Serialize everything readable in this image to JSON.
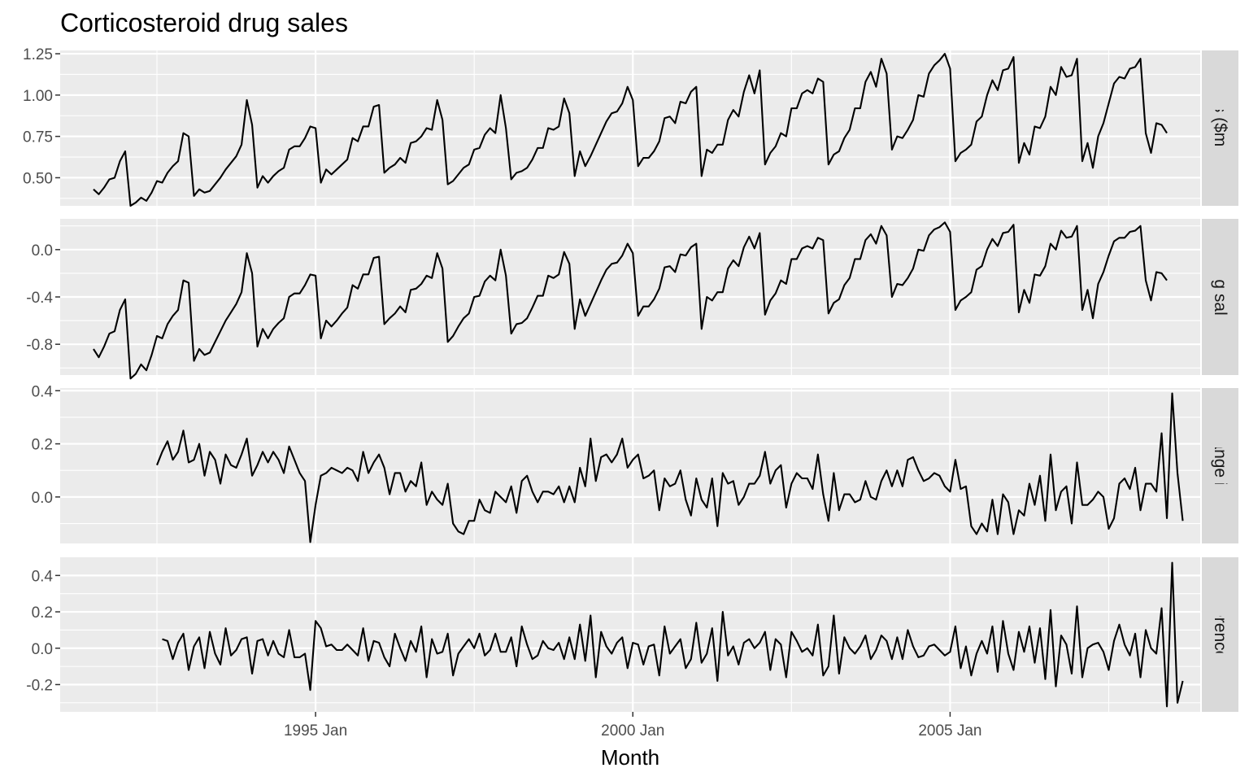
{
  "chart_data": {
    "type": "line",
    "title": "Corticosteroid drug sales",
    "xlabel": "Month",
    "x_axis": {
      "type": "date",
      "range": [
        "1991-07",
        "2008-06"
      ],
      "ticks": [
        "1995-01",
        "2000-01",
        "2005-01"
      ],
      "tick_labels": [
        "1995 Jan",
        "2000 Jan",
        "2005 Jan"
      ]
    },
    "grid": true,
    "legend": "none",
    "facets": [
      {
        "strip": "Sales ($million)",
        "ylim": [
          0.33,
          1.27
        ],
        "y_ticks": [
          0.5,
          0.75,
          1.0,
          1.25
        ],
        "y_tick_labels": [
          "0.50",
          "0.75",
          "1.00",
          "1.25"
        ],
        "start": "1991-07",
        "values": [
          0.43,
          0.4,
          0.44,
          0.49,
          0.5,
          0.6,
          0.66,
          0.33,
          0.35,
          0.38,
          0.36,
          0.41,
          0.48,
          0.47,
          0.53,
          0.57,
          0.6,
          0.77,
          0.75,
          0.39,
          0.43,
          0.41,
          0.42,
          0.46,
          0.5,
          0.55,
          0.59,
          0.63,
          0.7,
          0.97,
          0.82,
          0.44,
          0.51,
          0.47,
          0.51,
          0.54,
          0.56,
          0.67,
          0.69,
          0.69,
          0.74,
          0.81,
          0.8,
          0.47,
          0.55,
          0.52,
          0.55,
          0.58,
          0.61,
          0.74,
          0.72,
          0.81,
          0.81,
          0.93,
          0.94,
          0.53,
          0.56,
          0.58,
          0.62,
          0.59,
          0.71,
          0.72,
          0.75,
          0.8,
          0.79,
          0.97,
          0.85,
          0.46,
          0.48,
          0.52,
          0.56,
          0.58,
          0.67,
          0.68,
          0.76,
          0.8,
          0.77,
          1.0,
          0.8,
          0.49,
          0.53,
          0.54,
          0.56,
          0.61,
          0.68,
          0.68,
          0.8,
          0.79,
          0.81,
          0.98,
          0.89,
          0.51,
          0.66,
          0.57,
          0.63,
          0.7,
          0.77,
          0.84,
          0.89,
          0.9,
          0.95,
          1.05,
          0.97,
          0.57,
          0.62,
          0.62,
          0.66,
          0.72,
          0.86,
          0.87,
          0.83,
          0.96,
          0.95,
          1.02,
          1.05,
          0.51,
          0.67,
          0.65,
          0.7,
          0.7,
          0.85,
          0.91,
          0.87,
          1.02,
          1.12,
          1.01,
          1.15,
          0.58,
          0.65,
          0.69,
          0.77,
          0.75,
          0.92,
          0.92,
          1.01,
          1.03,
          1.01,
          1.1,
          1.08,
          0.58,
          0.64,
          0.66,
          0.74,
          0.79,
          0.92,
          0.92,
          1.08,
          1.14,
          1.05,
          1.22,
          1.13,
          0.67,
          0.75,
          0.74,
          0.79,
          0.85,
          1.0,
          0.99,
          1.13,
          1.18,
          1.21,
          1.25,
          1.16,
          0.6,
          0.65,
          0.67,
          0.7,
          0.84,
          0.87,
          1.0,
          1.09,
          1.03,
          1.15,
          1.16,
          1.23,
          0.59,
          0.71,
          0.64,
          0.81,
          0.8,
          0.87,
          1.05,
          1.0,
          1.17,
          1.11,
          1.12,
          1.22,
          0.6,
          0.71,
          0.56,
          0.75,
          0.83,
          0.95,
          1.07,
          1.11,
          1.1,
          1.16,
          1.17,
          1.22,
          0.77,
          0.65,
          0.83,
          0.82,
          0.77
        ]
      },
      {
        "strip": "Log sales",
        "ylim": [
          -1.06,
          0.26
        ],
        "y_ticks": [
          -0.8,
          -0.4,
          0.0
        ],
        "y_tick_labels": [
          "-0.8",
          "-0.4",
          "0.0"
        ],
        "start": "1991-07",
        "values": [
          -0.84,
          -0.91,
          -0.82,
          -0.71,
          -0.69,
          -0.51,
          -0.42,
          -1.09,
          -1.05,
          -0.97,
          -1.02,
          -0.89,
          -0.73,
          -0.75,
          -0.63,
          -0.56,
          -0.51,
          -0.26,
          -0.28,
          -0.94,
          -0.84,
          -0.89,
          -0.87,
          -0.78,
          -0.69,
          -0.6,
          -0.53,
          -0.46,
          -0.36,
          -0.03,
          -0.2,
          -0.82,
          -0.67,
          -0.75,
          -0.67,
          -0.62,
          -0.58,
          -0.4,
          -0.37,
          -0.37,
          -0.3,
          -0.21,
          -0.22,
          -0.75,
          -0.6,
          -0.65,
          -0.6,
          -0.54,
          -0.49,
          -0.3,
          -0.33,
          -0.21,
          -0.21,
          -0.07,
          -0.06,
          -0.63,
          -0.58,
          -0.54,
          -0.48,
          -0.53,
          -0.34,
          -0.33,
          -0.29,
          -0.22,
          -0.24,
          -0.03,
          -0.16,
          -0.78,
          -0.73,
          -0.65,
          -0.58,
          -0.54,
          -0.4,
          -0.39,
          -0.27,
          -0.22,
          -0.26,
          0.0,
          -0.22,
          -0.71,
          -0.63,
          -0.62,
          -0.58,
          -0.49,
          -0.39,
          -0.39,
          -0.22,
          -0.24,
          -0.21,
          -0.02,
          -0.12,
          -0.67,
          -0.42,
          -0.56,
          -0.46,
          -0.36,
          -0.26,
          -0.17,
          -0.12,
          -0.11,
          -0.05,
          0.05,
          -0.03,
          -0.56,
          -0.48,
          -0.48,
          -0.42,
          -0.33,
          -0.15,
          -0.14,
          -0.19,
          -0.04,
          -0.05,
          0.02,
          0.05,
          -0.67,
          -0.4,
          -0.43,
          -0.36,
          -0.36,
          -0.16,
          -0.09,
          -0.14,
          0.02,
          0.11,
          0.01,
          0.14,
          -0.55,
          -0.43,
          -0.37,
          -0.26,
          -0.29,
          -0.08,
          -0.08,
          0.01,
          0.03,
          0.01,
          0.1,
          0.08,
          -0.54,
          -0.45,
          -0.42,
          -0.3,
          -0.24,
          -0.08,
          -0.08,
          0.08,
          0.13,
          0.05,
          0.2,
          0.12,
          -0.4,
          -0.29,
          -0.3,
          -0.24,
          -0.16,
          0.0,
          -0.01,
          0.12,
          0.17,
          0.19,
          0.23,
          0.15,
          -0.51,
          -0.43,
          -0.4,
          -0.36,
          -0.17,
          -0.14,
          0.0,
          0.09,
          0.03,
          0.14,
          0.15,
          0.21,
          -0.53,
          -0.34,
          -0.45,
          -0.21,
          -0.22,
          -0.14,
          0.05,
          0.0,
          0.16,
          0.1,
          0.11,
          0.2,
          -0.51,
          -0.34,
          -0.58,
          -0.29,
          -0.19,
          -0.05,
          0.07,
          0.1,
          0.1,
          0.15,
          0.16,
          0.2,
          -0.26,
          -0.43,
          -0.19,
          -0.2,
          -0.26
        ]
      },
      {
        "strip": "Annual change in log sales",
        "ylim": [
          -0.175,
          0.41
        ],
        "y_ticks": [
          0.0,
          0.2,
          0.4
        ],
        "y_tick_labels": [
          "0.0",
          "0.2",
          "0.4"
        ],
        "start": "1992-07",
        "values": [
          0.12,
          0.17,
          0.21,
          0.14,
          0.17,
          0.25,
          0.13,
          0.14,
          0.2,
          0.08,
          0.17,
          0.14,
          0.05,
          0.16,
          0.12,
          0.11,
          0.16,
          0.22,
          0.08,
          0.12,
          0.17,
          0.13,
          0.17,
          0.14,
          0.09,
          0.19,
          0.14,
          0.09,
          0.06,
          -0.17,
          -0.03,
          0.08,
          0.09,
          0.11,
          0.1,
          0.09,
          0.11,
          0.1,
          0.06,
          0.17,
          0.09,
          0.13,
          0.16,
          0.11,
          0.01,
          0.09,
          0.09,
          0.02,
          0.06,
          0.04,
          0.13,
          -0.03,
          0.02,
          -0.01,
          -0.03,
          0.05,
          -0.1,
          -0.13,
          -0.14,
          -0.09,
          -0.09,
          -0.01,
          -0.05,
          -0.06,
          0.02,
          0.0,
          -0.02,
          0.04,
          -0.06,
          0.06,
          0.08,
          0.02,
          -0.02,
          0.02,
          0.02,
          0.01,
          0.04,
          -0.02,
          0.04,
          -0.02,
          0.11,
          0.04,
          0.22,
          0.06,
          0.15,
          0.16,
          0.13,
          0.16,
          0.22,
          0.11,
          0.14,
          0.16,
          0.07,
          0.08,
          0.1,
          -0.05,
          0.07,
          0.04,
          0.05,
          0.1,
          -0.01,
          -0.07,
          0.07,
          -0.01,
          -0.04,
          0.07,
          -0.11,
          0.09,
          0.05,
          0.06,
          -0.03,
          0.0,
          0.05,
          0.05,
          0.08,
          0.17,
          0.05,
          0.1,
          0.12,
          -0.04,
          0.05,
          0.09,
          0.07,
          0.07,
          0.03,
          0.16,
          0.01,
          -0.09,
          0.09,
          -0.05,
          0.01,
          0.01,
          -0.02,
          -0.01,
          0.06,
          0.0,
          -0.01,
          0.06,
          0.1,
          0.04,
          0.1,
          0.04,
          0.14,
          0.15,
          0.1,
          0.06,
          0.07,
          0.09,
          0.08,
          0.04,
          0.02,
          0.14,
          0.03,
          0.04,
          -0.11,
          -0.14,
          -0.1,
          -0.13,
          -0.01,
          -0.14,
          0.01,
          -0.02,
          -0.14,
          -0.05,
          -0.07,
          0.05,
          -0.03,
          0.08,
          -0.09,
          0.16,
          -0.05,
          0.02,
          0.04,
          -0.1,
          0.13,
          -0.03,
          -0.03,
          -0.01,
          0.02,
          0.0,
          -0.12,
          -0.08,
          0.05,
          0.07,
          0.03,
          0.11,
          -0.05,
          0.05,
          0.05,
          0.02,
          0.24,
          -0.08,
          0.39,
          0.09,
          -0.09
        ]
      },
      {
        "strip": "Doubly differenced log sales",
        "ylim": [
          -0.35,
          0.5
        ],
        "y_ticks": [
          -0.2,
          0.0,
          0.2,
          0.4
        ],
        "y_tick_labels": [
          "-0.2",
          "0.0",
          "0.2",
          "0.4"
        ],
        "start": "1992-08",
        "values": [
          0.05,
          0.04,
          -0.06,
          0.03,
          0.08,
          -0.12,
          0.01,
          0.06,
          -0.11,
          0.09,
          -0.03,
          -0.09,
          0.11,
          -0.04,
          -0.01,
          0.05,
          0.06,
          -0.14,
          0.04,
          0.05,
          -0.04,
          0.04,
          -0.03,
          -0.05,
          0.1,
          -0.05,
          -0.05,
          -0.03,
          -0.23,
          0.15,
          0.11,
          0.01,
          0.02,
          -0.01,
          -0.01,
          0.02,
          -0.01,
          -0.04,
          0.11,
          -0.07,
          0.04,
          0.03,
          -0.05,
          -0.1,
          0.08,
          0.0,
          -0.07,
          0.04,
          -0.02,
          0.12,
          -0.16,
          0.05,
          -0.03,
          -0.02,
          0.08,
          -0.15,
          -0.03,
          0.01,
          0.05,
          0.0,
          0.08,
          -0.04,
          -0.01,
          0.08,
          -0.02,
          -0.02,
          0.06,
          -0.1,
          0.12,
          0.02,
          -0.06,
          -0.04,
          0.04,
          0.0,
          -0.01,
          0.03,
          -0.06,
          0.06,
          -0.06,
          0.13,
          -0.07,
          0.18,
          -0.16,
          0.09,
          0.01,
          -0.03,
          0.03,
          0.06,
          -0.11,
          0.03,
          0.02,
          -0.09,
          0.01,
          0.02,
          -0.15,
          0.12,
          -0.03,
          0.01,
          0.05,
          -0.11,
          -0.06,
          0.14,
          -0.08,
          -0.03,
          0.11,
          -0.18,
          0.2,
          -0.04,
          0.01,
          -0.09,
          0.03,
          0.05,
          0.0,
          0.03,
          0.09,
          -0.12,
          0.05,
          0.02,
          -0.16,
          0.09,
          0.04,
          -0.02,
          0.0,
          -0.04,
          0.13,
          -0.15,
          -0.1,
          0.18,
          -0.14,
          0.06,
          0.0,
          -0.03,
          0.01,
          0.07,
          -0.06,
          -0.01,
          0.07,
          0.04,
          -0.06,
          0.06,
          -0.06,
          0.1,
          0.01,
          -0.05,
          -0.04,
          0.01,
          0.02,
          -0.01,
          -0.04,
          -0.02,
          0.12,
          -0.11,
          0.01,
          -0.15,
          -0.03,
          0.04,
          -0.03,
          0.12,
          -0.13,
          0.15,
          -0.03,
          -0.12,
          0.09,
          -0.02,
          0.12,
          -0.08,
          0.11,
          -0.17,
          0.21,
          -0.21,
          0.07,
          0.02,
          -0.14,
          0.23,
          -0.16,
          0.0,
          0.02,
          0.03,
          -0.02,
          -0.12,
          0.04,
          0.13,
          0.02,
          -0.04,
          0.08,
          -0.16,
          0.1,
          0.0,
          -0.03,
          0.22,
          -0.32,
          0.47,
          -0.3,
          -0.18
        ]
      }
    ]
  }
}
